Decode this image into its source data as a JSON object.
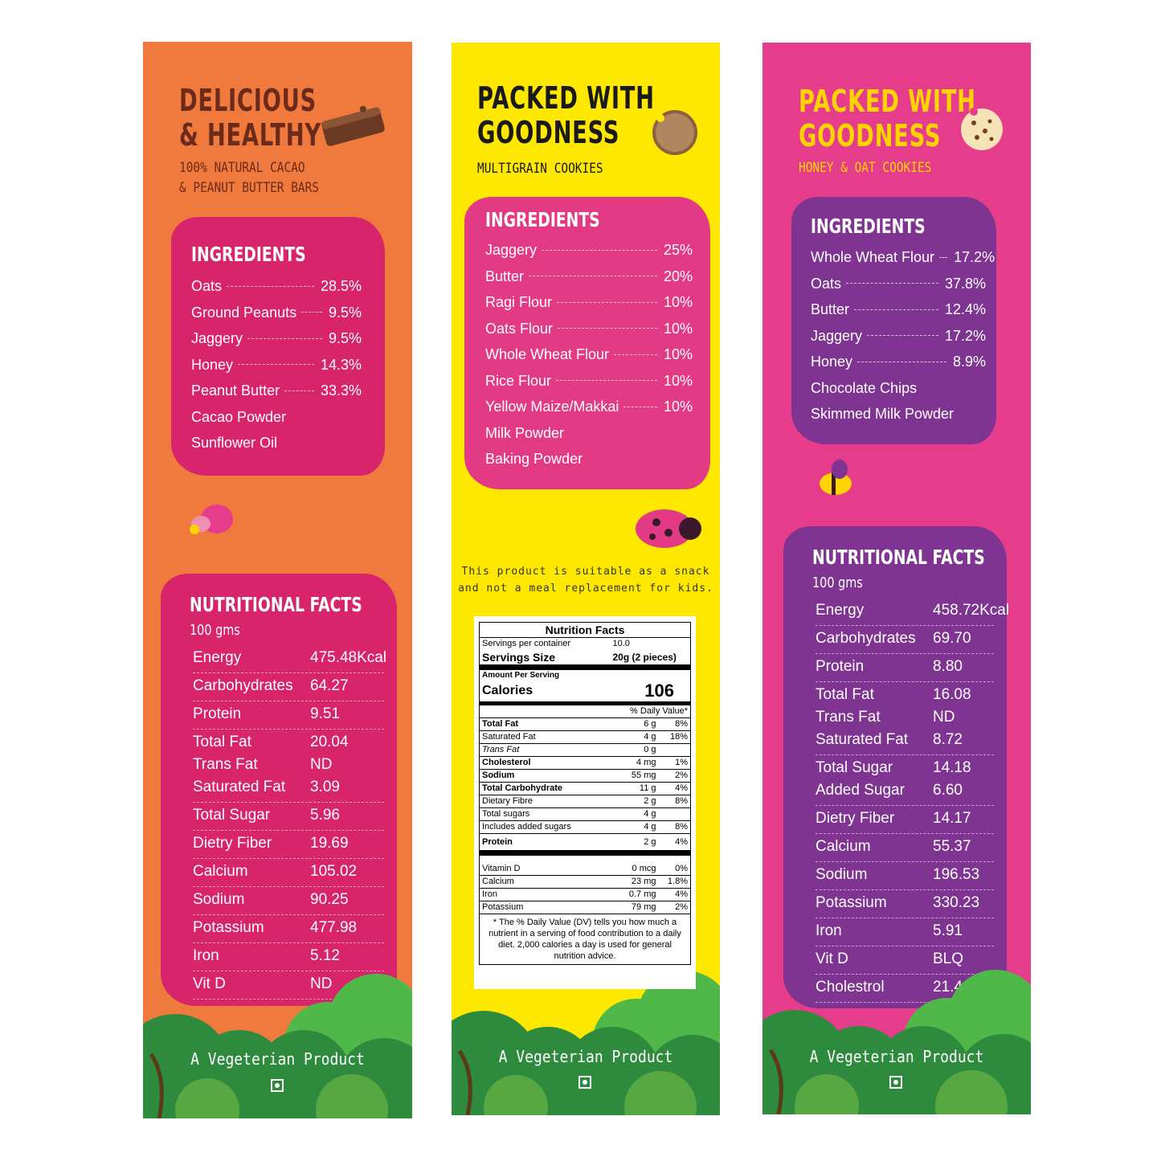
{
  "colors": {
    "orange": "#F07A3E",
    "yellow": "#FFE800",
    "pink": "#E63C8C",
    "magenta": "#D8246A",
    "purple": "#7E3490",
    "brown": "#6B2A1A",
    "gold": "#FFD400"
  },
  "panels": [
    {
      "title": [
        "DELICIOUS",
        "& HEALTHY"
      ],
      "subtitle": [
        "100% NATURAL CACAO",
        "& PEANUT BUTTER BARS"
      ],
      "icon": "chocolate-bar-icon",
      "ingredients_heading": "INGREDIENTS",
      "ingredients": [
        {
          "name": "Oats",
          "pct": "28.5%"
        },
        {
          "name": "Ground Peanuts",
          "pct": "9.5%"
        },
        {
          "name": "Jaggery",
          "pct": "9.5%"
        },
        {
          "name": "Honey",
          "pct": "14.3%"
        },
        {
          "name": "Peanut Butter",
          "pct": "33.3%"
        },
        {
          "name": "Cacao Powder",
          "pct": ""
        },
        {
          "name": "Sunflower Oil",
          "pct": ""
        }
      ],
      "nutrition_heading": "NUTRITIONAL FACTS",
      "nutrition_unit": "100 gms",
      "nutrition_groups": [
        [
          {
            "k": "Energy",
            "v": "475.48Kcal"
          }
        ],
        [
          {
            "k": "Carbohydrates",
            "v": "64.27"
          }
        ],
        [
          {
            "k": "Protein",
            "v": "9.51"
          }
        ],
        [
          {
            "k": "Total Fat",
            "v": "20.04"
          },
          {
            "k": "Trans Fat",
            "v": "ND"
          },
          {
            "k": "Saturated Fat",
            "v": "3.09"
          }
        ],
        [
          {
            "k": "Total Sugar",
            "v": "5.96"
          }
        ],
        [
          {
            "k": "Dietry Fiber",
            "v": "19.69"
          }
        ],
        [
          {
            "k": "Calcium",
            "v": "105.02"
          }
        ],
        [
          {
            "k": "Sodium",
            "v": "90.25"
          }
        ],
        [
          {
            "k": "Potassium",
            "v": "477.98"
          }
        ],
        [
          {
            "k": "Iron",
            "v": "5.12"
          }
        ],
        [
          {
            "k": "Vit D",
            "v": "ND"
          }
        ]
      ],
      "footer": "A Vegeterian Product"
    },
    {
      "title": [
        "PACKED WITH",
        "GOODNESS"
      ],
      "subtitle": [
        "MULTIGRAIN COOKIES"
      ],
      "icon": "cookie-icon",
      "ingredients_heading": "INGREDIENTS",
      "ingredients": [
        {
          "name": "Jaggery",
          "pct": "25%"
        },
        {
          "name": "Butter",
          "pct": "20%"
        },
        {
          "name": "Ragi Flour",
          "pct": "10%"
        },
        {
          "name": "Oats Flour",
          "pct": "10%"
        },
        {
          "name": "Whole Wheat Flour",
          "pct": "10%"
        },
        {
          "name": "Rice Flour",
          "pct": "10%"
        },
        {
          "name": "Yellow Maize/Makkai",
          "pct": "10%"
        },
        {
          "name": "Milk Powder",
          "pct": ""
        },
        {
          "name": "Baking Powder",
          "pct": ""
        }
      ],
      "note": [
        "This product is suitable as a snack",
        "and not a meal replacement for kids."
      ],
      "footer": "A Vegeterian Product"
    },
    {
      "title": [
        "PACKED WITH",
        "GOODNESS"
      ],
      "subtitle": [
        "HONEY & OAT COOKIES"
      ],
      "icon": "choco-chip-cookie-icon",
      "ingredients_heading": "INGREDIENTS",
      "ingredients": [
        {
          "name": "Whole Wheat Flour",
          "pct": "17.2%"
        },
        {
          "name": "Oats",
          "pct": "37.8%"
        },
        {
          "name": "Butter",
          "pct": "12.4%"
        },
        {
          "name": "Jaggery",
          "pct": "17.2%"
        },
        {
          "name": "Honey",
          "pct": "8.9%"
        },
        {
          "name": "Chocolate Chips",
          "pct": ""
        },
        {
          "name": "Skimmed Milk Powder",
          "pct": ""
        }
      ],
      "nutrition_heading": "NUTRITIONAL FACTS",
      "nutrition_unit": "100 gms",
      "nutrition_groups": [
        [
          {
            "k": "Energy",
            "v": "458.72Kcal"
          }
        ],
        [
          {
            "k": "Carbohydrates",
            "v": "69.70"
          }
        ],
        [
          {
            "k": "Protein",
            "v": "8.80"
          }
        ],
        [
          {
            "k": "Total Fat",
            "v": "16.08"
          },
          {
            "k": "Trans Fat",
            "v": "ND"
          },
          {
            "k": "Saturated Fat",
            "v": "8.72"
          }
        ],
        [
          {
            "k": "Total Sugar",
            "v": "14.18"
          },
          {
            "k": "Added Sugar",
            "v": "6.60"
          }
        ],
        [
          {
            "k": "Dietry Fiber",
            "v": "14.17"
          }
        ],
        [
          {
            "k": "Calcium",
            "v": "55.37"
          }
        ],
        [
          {
            "k": "Sodium",
            "v": "196.53"
          }
        ],
        [
          {
            "k": "Potassium",
            "v": "330.23"
          }
        ],
        [
          {
            "k": "Iron",
            "v": "5.91"
          }
        ],
        [
          {
            "k": "Vit D",
            "v": "BLQ"
          }
        ],
        [
          {
            "k": "Cholestrol",
            "v": "21.40"
          }
        ]
      ],
      "footer": "A Vegeterian Product"
    }
  ],
  "label": {
    "title": "Nutrition Facts",
    "spc_label": "Servings per container",
    "spc": "10.0",
    "size_label": "Servings Size",
    "size": "20g (2 pieces)",
    "amount": "Amount Per Serving",
    "cal_label": "Calories",
    "cal": "106",
    "dv": "% Daily Value*",
    "rows": [
      {
        "n": "Total Fat",
        "a": "6 g",
        "d": "8%",
        "b": 1
      },
      {
        "n": "Saturated Fat",
        "a": "4 g",
        "d": "18%"
      },
      {
        "n": "Trans Fat",
        "a": "0 g",
        "d": "",
        "i": 1
      },
      {
        "n": "Cholesterol",
        "a": "4 mg",
        "d": "1%",
        "b": 1
      },
      {
        "n": "Sodium",
        "a": "55 mg",
        "d": "2%",
        "b": 1
      },
      {
        "n": "Total Carbohydrate",
        "a": "11 g",
        "d": "4%",
        "b": 1
      },
      {
        "n": "Dietary Fibre",
        "a": "2 g",
        "d": "8%"
      },
      {
        "n": "Total sugars",
        "a": "4 g",
        "d": ""
      },
      {
        "n": "Includes added sugars",
        "a": "4 g",
        "d": "8%"
      },
      {
        "n": "Protein",
        "a": "2 g",
        "d": "4%",
        "b": 1
      }
    ],
    "rows2": [
      {
        "n": "Vitamin D",
        "a": "0 mcg",
        "d": "0%"
      },
      {
        "n": "Calcium",
        "a": "23 mg",
        "d": "1.8%"
      },
      {
        "n": "Iron",
        "a": "0.7 mg",
        "d": "4%"
      },
      {
        "n": "Potassium",
        "a": "79 mg",
        "d": "2%"
      }
    ],
    "footnote": "* The % Daily Value (DV) tells you how much a nutrient in a serving of food contribution to a daily diet. 2,000 calories a day is used for general nutrition advice."
  }
}
